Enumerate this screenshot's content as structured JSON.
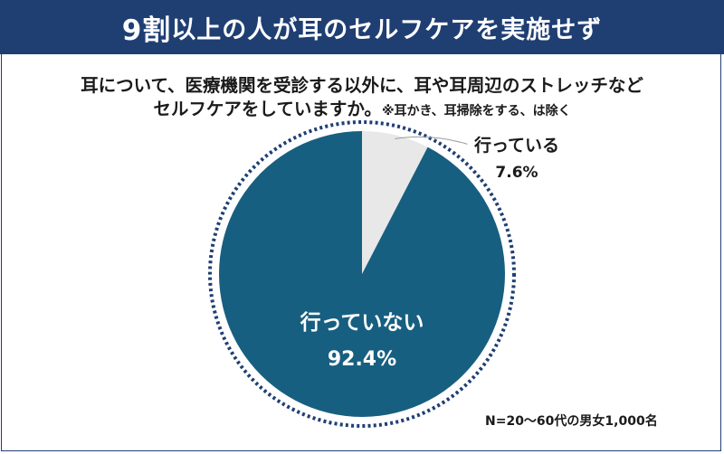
{
  "header": {
    "title_number": "9割",
    "title_rest": "以上の人が耳のセルフケアを実施せず"
  },
  "question": {
    "line1": "耳について、医療機関を受診する以外に、耳や耳周辺のストレッチなど",
    "line2": "セルフケアをしていますか。",
    "note": "※耳かき、耳掃除をする、は除く"
  },
  "chart_data": {
    "type": "pie",
    "slices": [
      {
        "label": "行っている",
        "value": 7.6,
        "value_text": "7.6%",
        "color": "#e8e8e8"
      },
      {
        "label": "行っていない",
        "value": 92.4,
        "value_text": "92.4%",
        "color": "#175f80"
      }
    ]
  },
  "footnote": "N=20～60代の男女1,000名",
  "colors": {
    "banner": "#1f3f73",
    "ring": "#1f3f73"
  }
}
